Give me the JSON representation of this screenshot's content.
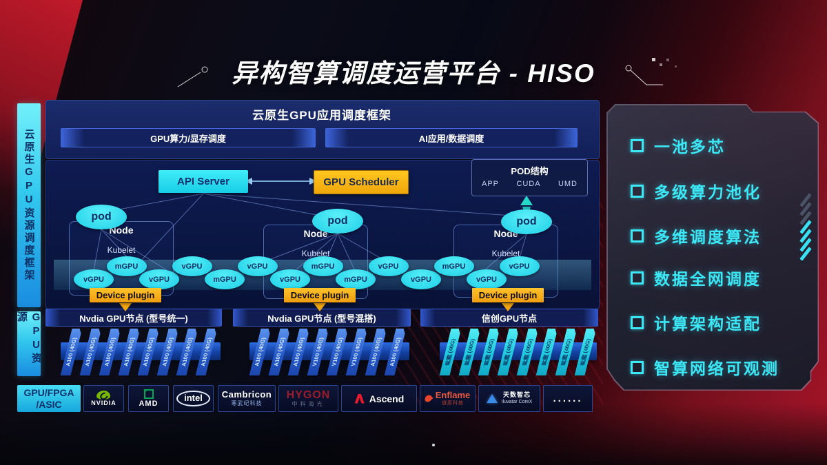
{
  "title": "异构智算调度运营平台 - HISO",
  "left_rails": {
    "frame": "云原生GPU资源调度框架",
    "gpu": "GPU资源"
  },
  "top_panel": {
    "header": "云原生GPU应用调度框架",
    "bar_left": "GPU算力/显存调度",
    "bar_right": "AI应用/数据调度"
  },
  "control": {
    "api_server": "API Server",
    "gpu_scheduler": "GPU Scheduler"
  },
  "pod_struct": {
    "title": "POD结构",
    "items": [
      "APP",
      "CUDA",
      "UMD"
    ]
  },
  "nodes": [
    {
      "title": "Node",
      "agent": "Kubelet",
      "pod": "pod",
      "plugin": "Device plugin",
      "bar": "Nvdia GPU节点 (型号统一)"
    },
    {
      "title": "Node",
      "agent": "Kubelet",
      "pod": "pod",
      "plugin": "Device plugin",
      "bar": "Nvdia GPU节点 (型号混搭)"
    },
    {
      "title": "Node",
      "agent": "Kubelet",
      "pod": "pod",
      "plugin": "Device plugin",
      "bar": "信创GPU节点"
    }
  ],
  "band": {
    "items": [
      {
        "label": "vGPU",
        "row": "low"
      },
      {
        "label": "mGPU",
        "row": "up"
      },
      {
        "label": "vGPU",
        "row": "low"
      },
      {
        "label": "vGPU",
        "row": "up"
      },
      {
        "label": "mGPU",
        "row": "low"
      },
      {
        "label": "vGPU",
        "row": "up"
      },
      {
        "label": "vGPU",
        "row": "low"
      },
      {
        "label": "mGPU",
        "row": "up"
      },
      {
        "label": "mGPU",
        "row": "low"
      },
      {
        "label": "vGPU",
        "row": "up"
      },
      {
        "label": "vGPU",
        "row": "low"
      },
      {
        "label": "mGPU",
        "row": "up"
      },
      {
        "label": "vGPU",
        "row": "low"
      },
      {
        "label": "vGPU",
        "row": "up"
      }
    ]
  },
  "stacks": [
    {
      "cards": [
        "A100 (40G)",
        "A100 (40G)",
        "A100 (40G)",
        "A100 (40G)",
        "A100 (40G)",
        "A100 (40G)",
        "A100 (40G)",
        "A100 (40G)"
      ]
    },
    {
      "cards": [
        "A100 (40G)",
        "A100 (40G)",
        "A100 (40G)",
        "V100 (40G)",
        "V100 (40G)",
        "V100 (40G)",
        "A100 (40G)",
        "A100 (40G)"
      ]
    },
    {
      "cards": [
        "昇腾 (40G)",
        "昇腾 (40G)",
        "昇腾 (40G)",
        "昇腾 (40G)",
        "昇腾 (40G)",
        "昇腾 (40G)",
        "昇腾 (40G)",
        "昇腾 (40G)"
      ]
    }
  ],
  "features": {
    "items": [
      "一池多芯",
      "多级算力池化",
      "多维调度算法",
      "数据全网调度",
      "计算架构适配",
      "智算网络可观测"
    ]
  },
  "vendors": {
    "chip_line1": "GPU/FPGA",
    "chip_line2": "/ASIC",
    "items": [
      {
        "type": "nvidia",
        "label": "NVIDIA"
      },
      {
        "type": "amd",
        "label": "AMD"
      },
      {
        "type": "intel",
        "label": "intel"
      },
      {
        "type": "cambricon",
        "label": "Cambricon",
        "sub": "寒武纪科技"
      },
      {
        "type": "hygon",
        "label": "HYGON",
        "sub": "中科海光"
      },
      {
        "type": "ascend",
        "label": "Ascend"
      },
      {
        "type": "enflame",
        "label": "Enflame",
        "sub": "燧原科技"
      },
      {
        "type": "iluvatar",
        "label": "天数智芯",
        "sub": "Iluvatar CoreX"
      },
      {
        "type": "dots",
        "label": "......"
      }
    ]
  },
  "colors": {
    "cyan_accent": "#2fe3f2",
    "yellow_accent": "#f5ad0e",
    "panel_navy": "#101d55",
    "background_red": "#a61426",
    "feature_text": "#3ce8f5",
    "card_blue": "#2f6ad8",
    "card_cyan": "#2bd8e8",
    "nvidia_green": "#76b900",
    "amd_green": "#00a651"
  }
}
